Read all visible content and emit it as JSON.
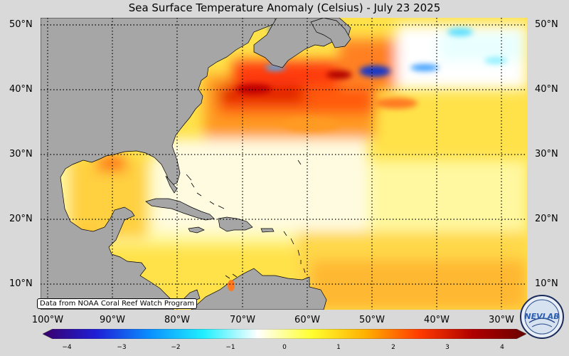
{
  "title": "Sea Surface Temperature Anomaly (Celsius) - July 23 2025",
  "lat_labels": [
    "50°N",
    "40°N",
    "30°N",
    "20°N",
    "10°N"
  ],
  "lat_labels_right": [
    "50°N",
    "40°N",
    "30°N",
    "20°N",
    "10°N"
  ],
  "lon_labels": [
    "100°W",
    "90°W",
    "80°W",
    "70°W",
    "60°W",
    "50°W",
    "40°W",
    "30°W"
  ],
  "source_note": "Data from NOAA Coral Reef Watch Program",
  "colorbar": {
    "ticks": [
      "−4",
      "−3",
      "−2",
      "−1",
      "0",
      "1",
      "2",
      "3",
      "4"
    ],
    "min": -4,
    "max": 4,
    "stops": [
      "#3a006b",
      "#1f1fd6",
      "#0a90ff",
      "#20f0ff",
      "#ffffff",
      "#ffff30",
      "#ffb000",
      "#ff3c00",
      "#b00000",
      "#6a0000"
    ]
  },
  "map": {
    "land_color": "#a6a6a6",
    "grid_lons": [
      -100,
      -90,
      -80,
      -70,
      -60,
      -50,
      -40,
      -30
    ],
    "grid_lats": [
      50,
      40,
      30,
      20,
      10
    ]
  },
  "logo": {
    "text": "NEVLAB"
  }
}
